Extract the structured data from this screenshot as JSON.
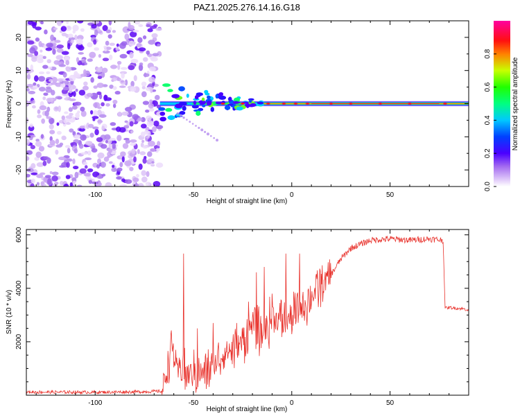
{
  "figure_title": "PAZ1.2025.276.14.16.G18",
  "colors": {
    "snr_line": "#e8302a",
    "axis": "#000000"
  },
  "chart_data": [
    {
      "type": "heatmap",
      "xlabel": "Height of straight line (km)",
      "ylabel": "Frequency (Hz)",
      "xlim": [
        -135,
        90
      ],
      "ylim": [
        -25,
        25
      ],
      "x_ticks": [
        -100,
        -50,
        0,
        50
      ],
      "x_tick_labels": [
        "-100",
        "-50",
        "0",
        "50"
      ],
      "y_ticks": [
        -20,
        -10,
        0,
        10,
        20
      ],
      "y_tick_labels": [
        "-20",
        "-10",
        "0",
        "10",
        "20"
      ],
      "noise_region_x": [
        -135,
        -67
      ],
      "signal_frequency_hz": 0,
      "colorbar": {
        "label": "Normalized spectral amplitude",
        "range": [
          0,
          1
        ],
        "ticks": [
          0.0,
          0.2,
          0.4,
          0.6,
          0.8
        ],
        "tick_labels": [
          "0.0",
          "0.2",
          "0.4",
          "0.6",
          "0.8"
        ]
      }
    },
    {
      "type": "line",
      "xlabel": "Height of straight line (km)",
      "ylabel": "SNR (10 * v/v)",
      "xlim": [
        -135,
        90
      ],
      "ylim": [
        0,
        6200
      ],
      "x_ticks": [
        -100,
        -50,
        0,
        50
      ],
      "x_tick_labels": [
        "-100",
        "-50",
        "0",
        "50"
      ],
      "y_ticks": [
        2000,
        4000,
        6000
      ],
      "y_tick_labels": [
        "2000",
        "4000",
        "6000"
      ],
      "series": [
        {
          "name": "SNR",
          "x": [
            -135,
            -100,
            -75,
            -66,
            -62,
            -60,
            -58,
            -56,
            -54,
            -50,
            -45,
            -40,
            -35,
            -30,
            -25,
            -20,
            -15,
            -10,
            -5,
            0,
            5,
            10,
            15,
            20,
            25,
            30,
            40,
            50,
            60,
            70,
            77,
            78,
            80,
            85,
            90
          ],
          "y": [
            120,
            110,
            130,
            150,
            1400,
            1600,
            800,
            1200,
            700,
            900,
            800,
            1100,
            1600,
            1700,
            2000,
            2700,
            2200,
            2900,
            2800,
            2900,
            3300,
            3700,
            4100,
            4500,
            5100,
            5500,
            5800,
            5850,
            5800,
            5850,
            5800,
            3250,
            3280,
            3250,
            3200
          ],
          "spikes": [
            {
              "x": -61,
              "y": 2000
            },
            {
              "x": -55,
              "y": 5300
            },
            {
              "x": -48,
              "y": 2500
            },
            {
              "x": -40,
              "y": 2700
            },
            {
              "x": -28,
              "y": 2700
            },
            {
              "x": -22,
              "y": 3500
            },
            {
              "x": -18,
              "y": 4600
            },
            {
              "x": -14,
              "y": 4800
            },
            {
              "x": -10,
              "y": 3800
            },
            {
              "x": -3,
              "y": 5300
            },
            {
              "x": 4,
              "y": 5300
            }
          ]
        }
      ]
    }
  ]
}
